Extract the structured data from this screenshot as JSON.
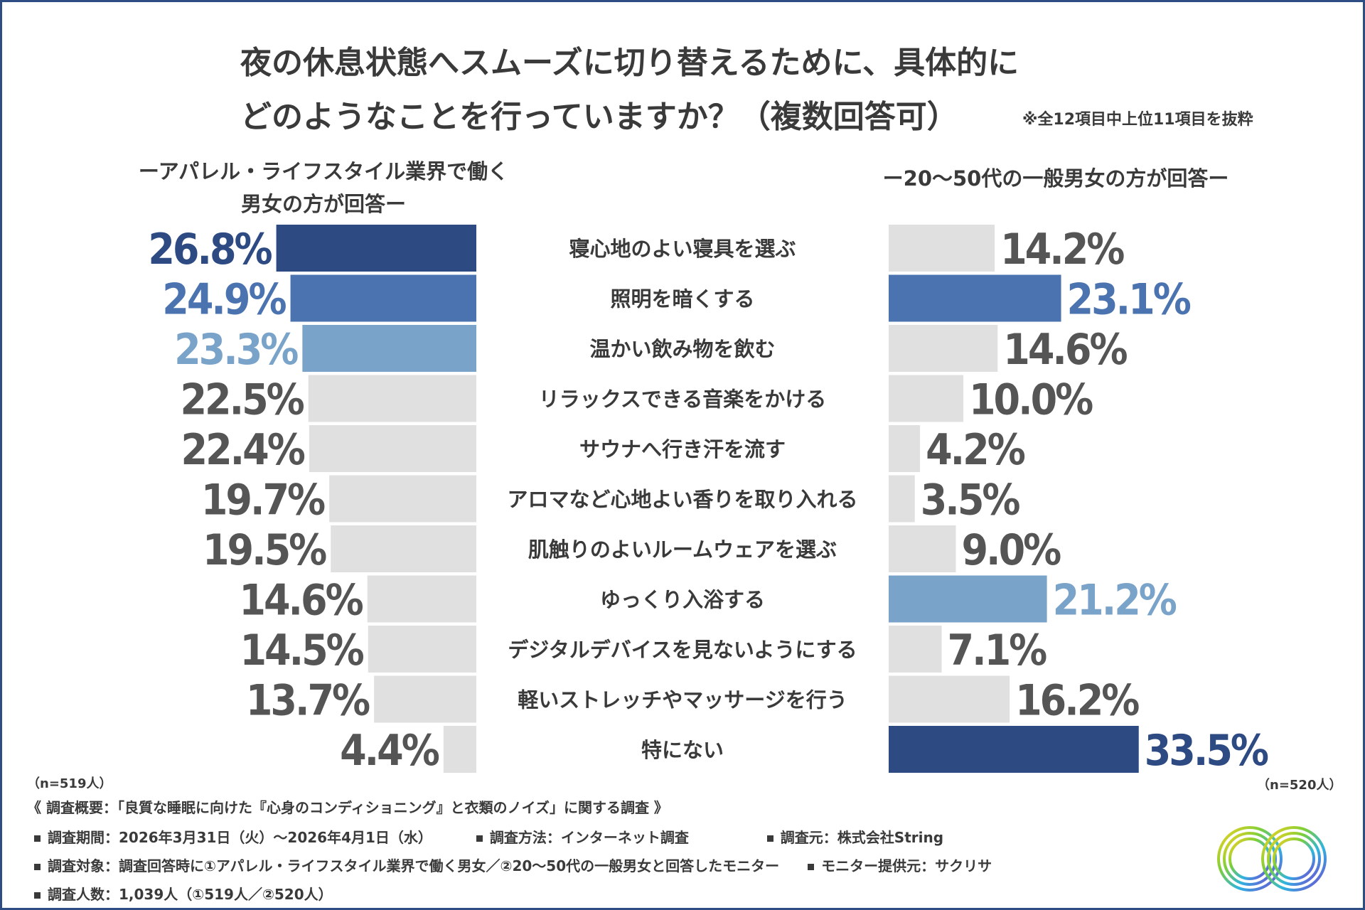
{
  "title": {
    "line1": "夜の休息状態へスムーズに切り替えるために、具体的に",
    "line2": "どのようなことを行っていますか？（複数回答可）",
    "note": "※全12項目中上位11項目を抜粋"
  },
  "subtitles": {
    "left_line1": "ーアパレル・ライフスタイル業界で働く",
    "left_line2": "男女の方が回答ー",
    "right": "ー20～50代の一般男女の方が回答ー"
  },
  "n_left": "（n=519人）",
  "n_right": "（n=520人）",
  "chart_data": {
    "type": "bar",
    "orientation": "horizontal-butterfly",
    "categories": [
      "寝心地のよい寝具を選ぶ",
      "照明を暗くする",
      "温かい飲み物を飲む",
      "リラックスできる音楽をかける",
      "サウナへ行き汗を流す",
      "アロマなど心地よい香りを取り入れる",
      "肌触りのよいルームウェアを選ぶ",
      "ゆっくり入浴する",
      "デジタルデバイスを見ないようにする",
      "軽いストレッチやマッサージを行う",
      "特にない"
    ],
    "series": [
      {
        "values": [
          26.8,
          24.9,
          23.3,
          22.5,
          22.4,
          19.7,
          19.5,
          14.6,
          14.5,
          13.7,
          4.4
        ],
        "labels": [
          "26.8%",
          "24.9%",
          "23.3%",
          "22.5%",
          "22.4%",
          "19.7%",
          "19.5%",
          "14.6%",
          "14.5%",
          "13.7%",
          "4.4%"
        ],
        "colors": [
          "#2d4a82",
          "#4a73b0",
          "#7aa3c9",
          "#e0e0e0",
          "#e0e0e0",
          "#e0e0e0",
          "#e0e0e0",
          "#e0e0e0",
          "#e0e0e0",
          "#e0e0e0",
          "#e0e0e0"
        ],
        "label_colors": [
          "#2d4a82",
          "#4a73b0",
          "#7aa3c9",
          "#555555",
          "#555555",
          "#555555",
          "#555555",
          "#555555",
          "#555555",
          "#555555",
          "#555555"
        ]
      },
      {
        "values": [
          14.2,
          23.1,
          14.6,
          10.0,
          4.2,
          3.5,
          9.0,
          21.2,
          7.1,
          16.2,
          33.5
        ],
        "labels": [
          "14.2%",
          "23.1%",
          "14.6%",
          "10.0%",
          "4.2%",
          "3.5%",
          "9.0%",
          "21.2%",
          "7.1%",
          "16.2%",
          "33.5%"
        ],
        "colors": [
          "#e0e0e0",
          "#4a73b0",
          "#e0e0e0",
          "#e0e0e0",
          "#e0e0e0",
          "#e0e0e0",
          "#e0e0e0",
          "#7aa3c9",
          "#e0e0e0",
          "#e0e0e0",
          "#2d4a82"
        ],
        "label_colors": [
          "#555555",
          "#4a73b0",
          "#555555",
          "#555555",
          "#555555",
          "#555555",
          "#555555",
          "#7aa3c9",
          "#555555",
          "#555555",
          "#2d4a82"
        ]
      }
    ]
  },
  "footer": {
    "overview": "《 調査概要：「良質な睡眠に向けた『心身のコンディショニング』と衣類のノイズ」に関する調査 》",
    "period": "調査期間：2026年3月31日（火）～2026年4月1日（水）",
    "method": "調査方法：インターネット調査",
    "source": "調査元：株式会社String",
    "target": "調査対象：調査回答時に①アパレル・ライフスタイル業界で働く男女／②20～50代の一般男女と回答したモニター",
    "provider": "モニター提供元：サクリサ",
    "count": "調査人数：1,039人（①519人／②520人）"
  },
  "logo_icon": "infinity-ring-icon"
}
